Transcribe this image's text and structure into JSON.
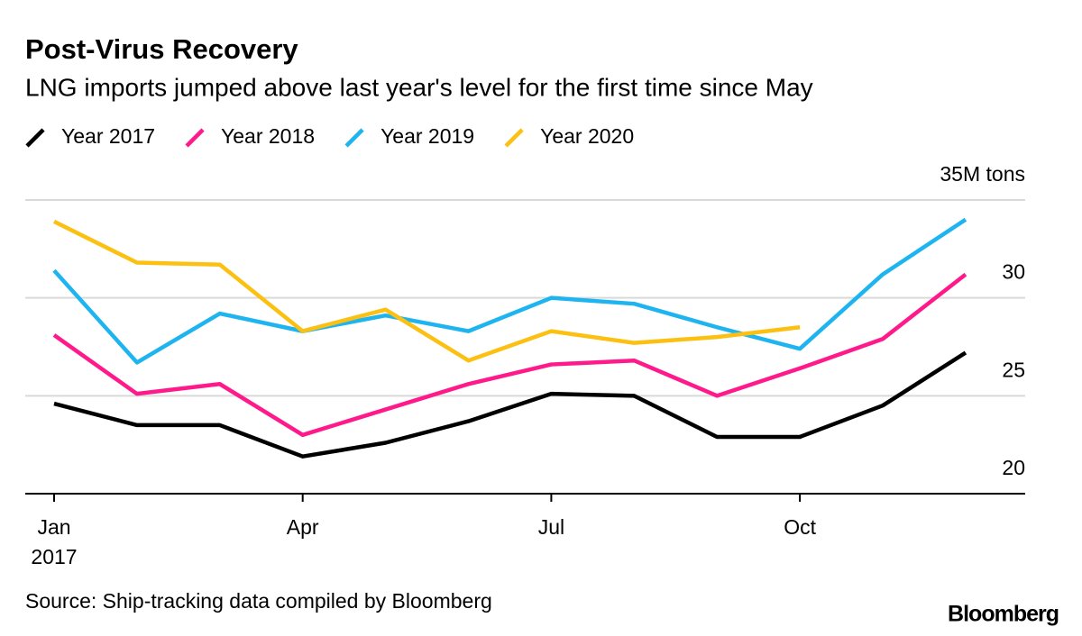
{
  "chart_data": {
    "type": "line",
    "title": "Post-Virus Recovery",
    "subtitle": "LNG imports jumped above last year's level for the first time since May",
    "source": "Source: Ship-tracking data compiled by Bloomberg",
    "brand": "Bloomberg",
    "categories": [
      "Jan",
      null,
      null,
      "Apr",
      null,
      null,
      "Jul",
      null,
      null,
      "Oct",
      null,
      null
    ],
    "x_sublabel": "2017",
    "series": [
      {
        "name": "Year 2017",
        "color": "#000000",
        "values": [
          24.6,
          23.5,
          23.5,
          21.9,
          22.6,
          23.7,
          25.1,
          25.0,
          22.9,
          22.9,
          24.5,
          27.2
        ]
      },
      {
        "name": "Year 2018",
        "color": "#ff1a8c",
        "values": [
          28.1,
          25.1,
          25.6,
          23.0,
          24.3,
          25.6,
          26.6,
          26.8,
          25.0,
          26.4,
          27.9,
          31.2
        ]
      },
      {
        "name": "Year 2019",
        "color": "#1eb4f0",
        "values": [
          31.4,
          26.7,
          29.2,
          28.3,
          29.1,
          28.3,
          30.0,
          29.7,
          28.5,
          27.4,
          31.2,
          34.0
        ]
      },
      {
        "name": "Year 2020",
        "color": "#fbc012",
        "values": [
          33.9,
          31.8,
          31.7,
          28.3,
          29.4,
          26.8,
          28.3,
          27.7,
          28.0,
          28.5,
          null,
          null
        ]
      }
    ],
    "ylim": [
      20,
      35
    ],
    "yticks": [
      20,
      25,
      30,
      {
        "value": 35,
        "label": "35M tons"
      }
    ],
    "grid": true
  }
}
